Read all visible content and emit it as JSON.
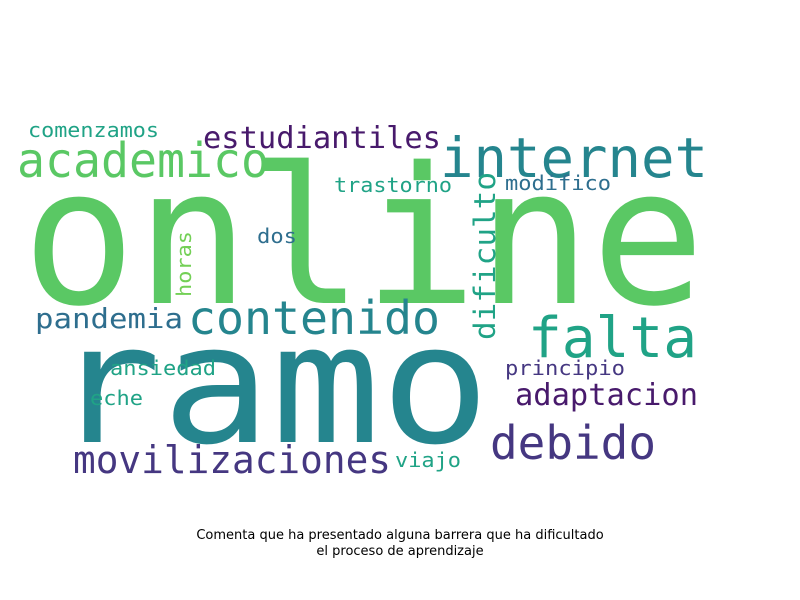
{
  "colors": {
    "green": "#5ac864",
    "teal": "#25858e",
    "seafoam": "#20a386",
    "blue": "#2e6e8e",
    "indigo": "#453781",
    "purple": "#481a6c",
    "light_green": "#73d056"
  },
  "words": [
    {
      "text": "online",
      "color": "green"
    },
    {
      "text": "ramo",
      "color": "teal"
    },
    {
      "text": "internet",
      "color": "teal"
    },
    {
      "text": "academico",
      "color": "green"
    },
    {
      "text": "estudiantiles",
      "color": "purple"
    },
    {
      "text": "falta",
      "color": "seafoam"
    },
    {
      "text": "contenido",
      "color": "teal"
    },
    {
      "text": "debido",
      "color": "indigo"
    },
    {
      "text": "movilizaciones",
      "color": "indigo"
    },
    {
      "text": "adaptacion",
      "color": "purple"
    },
    {
      "text": "pandemia",
      "color": "blue"
    },
    {
      "text": "dificulto",
      "color": "seafoam"
    },
    {
      "text": "comenzamos",
      "color": "seafoam"
    },
    {
      "text": "trastorno",
      "color": "seafoam"
    },
    {
      "text": "modifico",
      "color": "blue"
    },
    {
      "text": "dos",
      "color": "blue"
    },
    {
      "text": "horas",
      "color": "light_green"
    },
    {
      "text": "principio",
      "color": "indigo"
    },
    {
      "text": "ansiedad",
      "color": "seafoam"
    },
    {
      "text": "eche",
      "color": "seafoam"
    },
    {
      "text": "viajo",
      "color": "seafoam"
    }
  ],
  "caption": {
    "line1": "Comenta que ha presentado alguna barrera que ha dificultado",
    "line2": "el proceso de aprendizaje"
  }
}
